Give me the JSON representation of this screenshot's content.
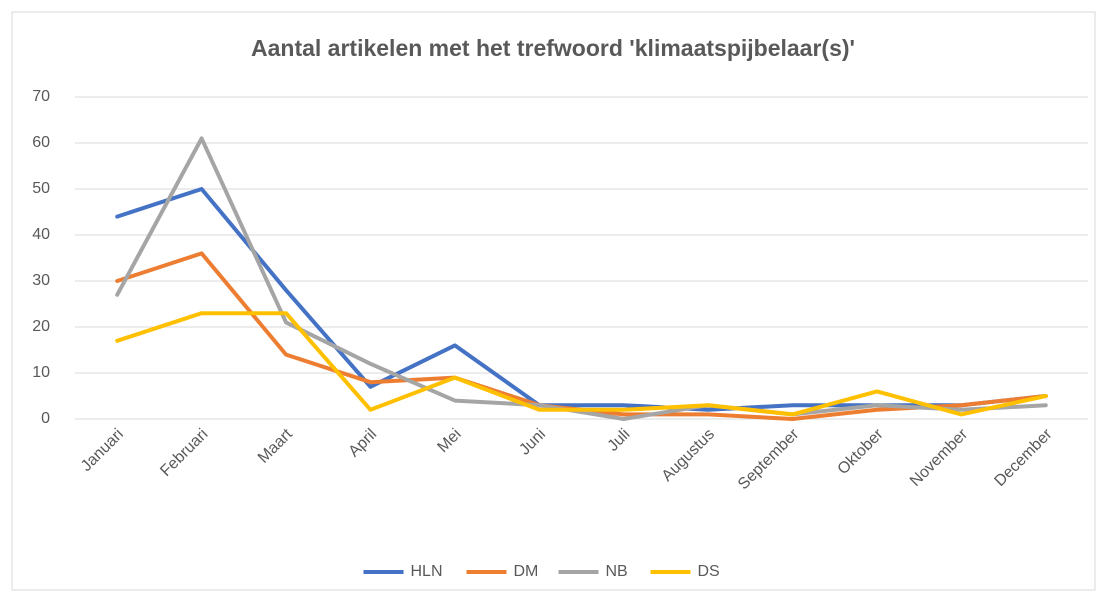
{
  "chart_data": {
    "type": "line",
    "title": "Aantal artikelen met het trefwoord 'klimaatspijbelaar(s)'",
    "categories": [
      "Januari",
      "Februari",
      "Maart",
      "April",
      "Mei",
      "Juni",
      "Juli",
      "Augustus",
      "September",
      "Oktober",
      "November",
      "December"
    ],
    "series": [
      {
        "name": "HLN",
        "color": "#4472c4",
        "values": [
          44,
          50,
          28,
          7,
          16,
          3,
          3,
          2,
          3,
          3,
          3,
          5
        ]
      },
      {
        "name": "DM",
        "color": "#ed7d31",
        "values": [
          30,
          36,
          14,
          8,
          9,
          3,
          1,
          1,
          0,
          2,
          3,
          5
        ]
      },
      {
        "name": "NB",
        "color": "#a5a5a5",
        "values": [
          27,
          61,
          21,
          12,
          4,
          3,
          0,
          3,
          1,
          3,
          2,
          3
        ]
      },
      {
        "name": "DS",
        "color": "#ffc000",
        "values": [
          17,
          23,
          23,
          2,
          9,
          2,
          2,
          3,
          1,
          6,
          1,
          5
        ]
      }
    ],
    "ylim": [
      0,
      70
    ],
    "yticks": [
      0,
      10,
      20,
      30,
      40,
      50,
      60,
      70
    ],
    "grid": true,
    "legend": "bottom"
  }
}
